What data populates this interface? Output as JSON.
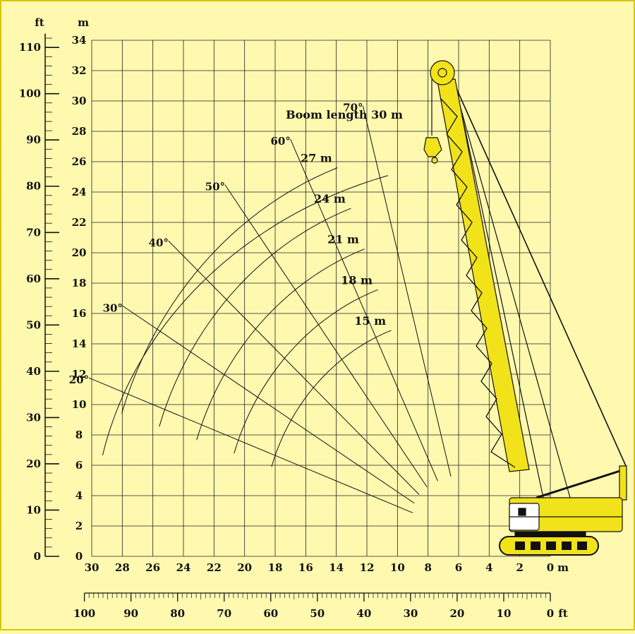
{
  "colors": {
    "background": "#fff9b0",
    "border": "#d9c400",
    "ink": "#111111",
    "crane": "#f2e21a"
  },
  "chart_data": {
    "type": "line",
    "title": "Boom length 30 m",
    "ylabel_ft": "ft",
    "ylabel_m": "m",
    "xunit_m": "m",
    "xunit_ft": "ft",
    "xlim": [
      30,
      0
    ],
    "ylim": [
      0,
      34
    ],
    "grid": true,
    "y_ticks_m": [
      "0",
      "2",
      "4",
      "6",
      "8",
      "10",
      "12",
      "14",
      "16",
      "18",
      "20",
      "22",
      "24",
      "26",
      "28",
      "30",
      "32",
      "34"
    ],
    "y_ticks_ft": [
      "0",
      "10",
      "20",
      "30",
      "40",
      "50",
      "60",
      "70",
      "80",
      "90",
      "100",
      "110"
    ],
    "x_ticks_m": [
      "30",
      "28",
      "26",
      "24",
      "22",
      "20",
      "18",
      "16",
      "14",
      "12",
      "10",
      "8",
      "6",
      "4",
      "2",
      "0"
    ],
    "x_ticks_ft": [
      "100",
      "90",
      "80",
      "70",
      "60",
      "50",
      "40",
      "30",
      "20",
      "10",
      "0"
    ],
    "radius_arcs": [
      {
        "label": "27 m",
        "radius": 27
      },
      {
        "label": "24 m",
        "radius": 24
      },
      {
        "label": "21 m",
        "radius": 21
      },
      {
        "label": "18 m",
        "radius": 18
      },
      {
        "label": "15 m",
        "radius": 15
      }
    ],
    "angle_lines": [
      {
        "label": "20°",
        "angle": 20
      },
      {
        "label": "30°",
        "angle": 30
      },
      {
        "label": "40°",
        "angle": 40
      },
      {
        "label": "50°",
        "angle": 50
      },
      {
        "label": "60°",
        "angle": 60
      },
      {
        "label": "70°",
        "angle": 70
      }
    ]
  }
}
